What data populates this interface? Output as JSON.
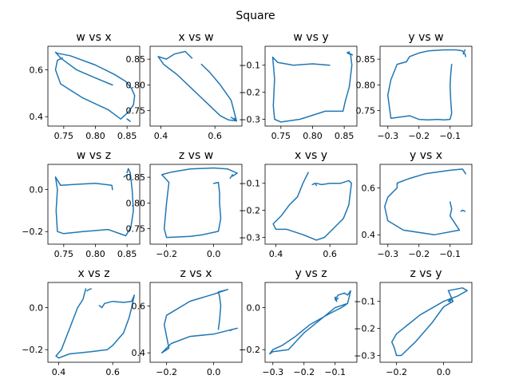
{
  "figure": {
    "suptitle": "Square"
  },
  "colors": {
    "line": "#1f77b4"
  },
  "chart_data": [
    {
      "type": "line",
      "title": "w vs x",
      "xlabel": "",
      "ylabel": "",
      "grid": false,
      "xlim": [
        0.725,
        0.87
      ],
      "ylim": [
        0.36,
        0.7
      ],
      "xticks": [
        {
          "v": 0.75,
          "label": "0.75"
        },
        {
          "v": 0.8,
          "label": "0.80"
        },
        {
          "v": 0.85,
          "label": "0.85"
        }
      ],
      "yticks": [
        {
          "v": 0.4,
          "label": "0.4"
        },
        {
          "v": 0.6,
          "label": "0.6"
        }
      ],
      "segments": [
        {
          "x": [
            0.827,
            0.8,
            0.77,
            0.745,
            0.737,
            0.74,
            0.76,
            0.8,
            0.83,
            0.848,
            0.857
          ],
          "y": [
            0.535,
            0.565,
            0.6,
            0.65,
            0.675,
            0.67,
            0.66,
            0.62,
            0.58,
            0.55,
            0.52
          ]
        },
        {
          "x": [
            0.857,
            0.862,
            0.86,
            0.852,
            0.84,
            0.82,
            0.78,
            0.745,
            0.737,
            0.74,
            0.748
          ],
          "y": [
            0.52,
            0.49,
            0.45,
            0.42,
            0.39,
            0.43,
            0.48,
            0.54,
            0.6,
            0.64,
            0.65
          ]
        },
        {
          "x": [
            0.855,
            0.85,
            0.853
          ],
          "y": [
            0.38,
            0.39,
            0.385
          ]
        }
      ]
    },
    {
      "type": "line",
      "title": "x vs w",
      "xlabel": "",
      "ylabel": "",
      "grid": false,
      "xlim": [
        0.36,
        0.7
      ],
      "ylim": [
        0.72,
        0.875
      ],
      "xticks": [
        {
          "v": 0.4,
          "label": "0.4"
        },
        {
          "v": 0.6,
          "label": "0.6"
        }
      ],
      "yticks": [
        {
          "v": 0.75,
          "label": "0.75"
        },
        {
          "v": 0.8,
          "label": "0.80"
        },
        {
          "v": 0.85,
          "label": "0.85"
        }
      ],
      "segments": [
        {
          "x": [
            0.515,
            0.49,
            0.45,
            0.42,
            0.39,
            0.41,
            0.46,
            0.52,
            0.58,
            0.62,
            0.65,
            0.68
          ],
          "y": [
            0.852,
            0.865,
            0.86,
            0.85,
            0.855,
            0.84,
            0.82,
            0.79,
            0.76,
            0.74,
            0.732,
            0.73
          ]
        },
        {
          "x": [
            0.68,
            0.66,
            0.62,
            0.58,
            0.55
          ],
          "y": [
            0.73,
            0.77,
            0.8,
            0.825,
            0.84
          ]
        },
        {
          "x": [
            0.66,
            0.68,
            0.672
          ],
          "y": [
            0.737,
            0.73,
            0.735
          ]
        }
      ]
    },
    {
      "type": "line",
      "title": "w vs y",
      "xlabel": "",
      "ylabel": "",
      "grid": false,
      "xlim": [
        0.725,
        0.87
      ],
      "ylim": [
        -0.325,
        -0.03
      ],
      "xticks": [
        {
          "v": 0.75,
          "label": "0.75"
        },
        {
          "v": 0.8,
          "label": "0.80"
        },
        {
          "v": 0.85,
          "label": "0.85"
        }
      ],
      "yticks": [
        {
          "v": -0.3,
          "label": "−0.3"
        },
        {
          "v": -0.2,
          "label": "−0.2"
        },
        {
          "v": -0.1,
          "label": "−0.1"
        }
      ],
      "segments": [
        {
          "x": [
            0.827,
            0.8,
            0.77,
            0.745,
            0.737,
            0.74,
            0.738,
            0.74,
            0.75,
            0.78,
            0.82,
            0.848,
            0.852,
            0.858,
            0.862,
            0.86,
            0.855,
            0.858
          ],
          "y": [
            -0.1,
            -0.095,
            -0.1,
            -0.09,
            -0.07,
            -0.15,
            -0.25,
            -0.3,
            -0.31,
            -0.3,
            -0.27,
            -0.27,
            -0.23,
            -0.18,
            -0.1,
            -0.06,
            -0.055,
            -0.05
          ]
        },
        {
          "x": [
            0.855,
            0.86,
            0.863
          ],
          "y": [
            -0.052,
            -0.058,
            -0.062
          ]
        }
      ]
    },
    {
      "type": "line",
      "title": "y vs w",
      "xlabel": "",
      "ylabel": "",
      "grid": false,
      "xlim": [
        -0.325,
        -0.03
      ],
      "ylim": [
        0.72,
        0.875
      ],
      "xticks": [
        {
          "v": -0.3,
          "label": "−0.3"
        },
        {
          "v": -0.2,
          "label": "−0.2"
        },
        {
          "v": -0.1,
          "label": "−0.1"
        }
      ],
      "yticks": [
        {
          "v": 0.75,
          "label": "0.75"
        },
        {
          "v": 0.8,
          "label": "0.80"
        },
        {
          "v": 0.85,
          "label": "0.85"
        }
      ],
      "segments": [
        {
          "x": [
            -0.095,
            -0.098,
            -0.1,
            -0.098,
            -0.095,
            -0.1,
            -0.12,
            -0.14,
            -0.17,
            -0.2,
            -0.23,
            -0.29,
            -0.3,
            -0.29,
            -0.27,
            -0.24,
            -0.23,
            -0.2,
            -0.17,
            -0.12,
            -0.08,
            -0.06,
            -0.052,
            -0.05
          ],
          "y": [
            0.84,
            0.82,
            0.8,
            0.77,
            0.745,
            0.733,
            0.732,
            0.733,
            0.732,
            0.733,
            0.74,
            0.735,
            0.78,
            0.81,
            0.84,
            0.845,
            0.855,
            0.862,
            0.866,
            0.868,
            0.868,
            0.866,
            0.86,
            0.855
          ]
        },
        {
          "x": [
            -0.052,
            -0.058
          ],
          "y": [
            0.868,
            0.86
          ]
        }
      ]
    },
    {
      "type": "line",
      "title": "w vs z",
      "xlabel": "",
      "ylabel": "",
      "grid": false,
      "xlim": [
        0.725,
        0.87
      ],
      "ylim": [
        -0.26,
        0.12
      ],
      "xticks": [
        {
          "v": 0.75,
          "label": "0.75"
        },
        {
          "v": 0.8,
          "label": "0.80"
        },
        {
          "v": 0.85,
          "label": "0.85"
        }
      ],
      "yticks": [
        {
          "v": -0.2,
          "label": "−0.2"
        },
        {
          "v": 0.0,
          "label": "0.0"
        }
      ],
      "segments": [
        {
          "x": [
            0.827,
            0.826,
            0.8,
            0.77,
            0.745,
            0.737,
            0.74,
            0.738,
            0.74,
            0.75,
            0.78,
            0.82,
            0.848,
            0.856,
            0.86,
            0.858,
            0.855,
            0.852,
            0.85
          ],
          "y": [
            0.0,
            0.02,
            0.03,
            0.025,
            0.02,
            0.06,
            0.0,
            -0.1,
            -0.2,
            -0.21,
            -0.2,
            -0.19,
            -0.22,
            -0.18,
            -0.1,
            0.0,
            0.08,
            0.1,
            0.08
          ]
        },
        {
          "x": [
            0.845,
            0.85
          ],
          "y": [
            0.06,
            0.07
          ]
        }
      ]
    },
    {
      "type": "line",
      "title": "z vs w",
      "xlabel": "",
      "ylabel": "",
      "grid": false,
      "xlim": [
        -0.27,
        0.12
      ],
      "ylim": [
        0.72,
        0.875
      ],
      "xticks": [
        {
          "v": -0.2,
          "label": "−0.2"
        },
        {
          "v": 0.0,
          "label": "0.0"
        }
      ],
      "yticks": [
        {
          "v": 0.75,
          "label": "0.75"
        },
        {
          "v": 0.8,
          "label": "0.80"
        },
        {
          "v": 0.85,
          "label": "0.85"
        }
      ],
      "segments": [
        {
          "x": [
            0.0,
            0.02,
            0.025,
            0.025,
            0.03,
            0.02,
            -0.05,
            -0.1,
            -0.2,
            -0.21,
            -0.2,
            -0.19,
            -0.22,
            -0.18,
            -0.1,
            0.0,
            0.06,
            0.08,
            0.1,
            0.08
          ],
          "y": [
            0.838,
            0.84,
            0.82,
            0.8,
            0.77,
            0.745,
            0.738,
            0.735,
            0.733,
            0.75,
            0.8,
            0.84,
            0.855,
            0.86,
            0.866,
            0.868,
            0.866,
            0.862,
            0.858,
            0.852
          ]
        },
        {
          "x": [
            0.07,
            0.08
          ],
          "y": [
            0.848,
            0.855
          ]
        }
      ]
    },
    {
      "type": "line",
      "title": "x vs y",
      "xlabel": "",
      "ylabel": "",
      "grid": false,
      "xlim": [
        0.36,
        0.7
      ],
      "ylim": [
        -0.325,
        -0.03
      ],
      "xticks": [
        {
          "v": 0.4,
          "label": "0.4"
        },
        {
          "v": 0.6,
          "label": "0.6"
        }
      ],
      "yticks": [
        {
          "v": -0.3,
          "label": "−0.3"
        },
        {
          "v": -0.2,
          "label": "−0.2"
        },
        {
          "v": -0.1,
          "label": "−0.1"
        }
      ],
      "segments": [
        {
          "x": [
            0.52,
            0.5,
            0.48,
            0.45,
            0.42,
            0.39,
            0.4,
            0.44,
            0.5,
            0.55,
            0.58,
            0.62,
            0.65,
            0.67,
            0.68,
            0.67,
            0.64,
            0.6,
            0.57,
            0.55
          ],
          "y": [
            -0.06,
            -0.1,
            -0.15,
            -0.18,
            -0.22,
            -0.25,
            -0.27,
            -0.27,
            -0.29,
            -0.31,
            -0.3,
            -0.26,
            -0.23,
            -0.18,
            -0.1,
            -0.09,
            -0.1,
            -0.1,
            -0.105,
            -0.1
          ]
        },
        {
          "x": [
            0.535,
            0.545,
            0.55
          ],
          "y": [
            -0.105,
            -0.1,
            -0.108
          ]
        }
      ]
    },
    {
      "type": "line",
      "title": "y vs x",
      "xlabel": "",
      "ylabel": "",
      "grid": false,
      "xlim": [
        -0.325,
        -0.03
      ],
      "ylim": [
        0.36,
        0.7
      ],
      "xticks": [
        {
          "v": -0.3,
          "label": "−0.3"
        },
        {
          "v": -0.2,
          "label": "−0.2"
        },
        {
          "v": -0.1,
          "label": "−0.1"
        }
      ],
      "yticks": [
        {
          "v": 0.4,
          "label": "0.4"
        },
        {
          "v": 0.6,
          "label": "0.6"
        }
      ],
      "segments": [
        {
          "x": [
            -0.1,
            -0.095,
            -0.1,
            -0.09,
            -0.07,
            -0.15,
            -0.25,
            -0.3,
            -0.31,
            -0.3,
            -0.27,
            -0.27,
            -0.23,
            -0.18,
            -0.1,
            -0.06,
            -0.055,
            -0.05
          ],
          "y": [
            0.54,
            0.51,
            0.48,
            0.46,
            0.42,
            0.4,
            0.42,
            0.46,
            0.52,
            0.56,
            0.6,
            0.62,
            0.64,
            0.66,
            0.675,
            0.68,
            0.67,
            0.66
          ]
        },
        {
          "x": [
            -0.052,
            -0.06,
            -0.065
          ],
          "y": [
            0.5,
            0.505,
            0.5
          ]
        }
      ]
    },
    {
      "type": "line",
      "title": "x vs z",
      "xlabel": "",
      "ylabel": "",
      "grid": false,
      "xlim": [
        0.36,
        0.7
      ],
      "ylim": [
        -0.26,
        0.12
      ],
      "xticks": [
        {
          "v": 0.4,
          "label": "0.4"
        },
        {
          "v": 0.6,
          "label": "0.6"
        }
      ],
      "yticks": [
        {
          "v": -0.2,
          "label": "−0.2"
        },
        {
          "v": 0.0,
          "label": "0.0"
        }
      ],
      "segments": [
        {
          "x": [
            0.5,
            0.49,
            0.47,
            0.44,
            0.41,
            0.39,
            0.4,
            0.44,
            0.52,
            0.58,
            0.6,
            0.64,
            0.66,
            0.67,
            0.68,
            0.67,
            0.64,
            0.6,
            0.57,
            0.56,
            0.55
          ],
          "y": [
            0.09,
            0.04,
            0.0,
            -0.1,
            -0.2,
            -0.23,
            -0.24,
            -0.22,
            -0.21,
            -0.2,
            -0.18,
            -0.12,
            -0.05,
            0.0,
            0.06,
            0.03,
            0.025,
            0.03,
            0.02,
            0.0,
            0.01
          ]
        },
        {
          "x": [
            0.52,
            0.51,
            0.505
          ],
          "y": [
            0.09,
            0.085,
            0.08
          ]
        }
      ]
    },
    {
      "type": "line",
      "title": "z vs x",
      "xlabel": "",
      "ylabel": "",
      "grid": false,
      "xlim": [
        -0.27,
        0.12
      ],
      "ylim": [
        0.36,
        0.7
      ],
      "xticks": [
        {
          "v": -0.2,
          "label": "−0.2"
        },
        {
          "v": 0.0,
          "label": "0.0"
        }
      ],
      "yticks": [
        {
          "v": 0.4,
          "label": "0.4"
        },
        {
          "v": 0.6,
          "label": "0.6"
        }
      ],
      "segments": [
        {
          "x": [
            0.02,
            0.025,
            0.03,
            0.025,
            0.02,
            0.06,
            0.0,
            -0.1,
            -0.2,
            -0.21,
            -0.2,
            -0.19,
            -0.22,
            -0.18,
            -0.1,
            0.0,
            0.08,
            0.1,
            0.08
          ],
          "y": [
            0.5,
            0.54,
            0.6,
            0.64,
            0.66,
            0.67,
            0.65,
            0.62,
            0.56,
            0.52,
            0.47,
            0.42,
            0.4,
            0.44,
            0.47,
            0.48,
            0.5,
            0.505,
            0.5
          ]
        },
        {
          "x": [
            0.07,
            0.08
          ],
          "y": [
            0.495,
            0.5
          ]
        }
      ]
    },
    {
      "type": "line",
      "title": "y vs z",
      "xlabel": "",
      "ylabel": "",
      "grid": false,
      "xlim": [
        -0.325,
        -0.03
      ],
      "ylim": [
        -0.26,
        0.12
      ],
      "xticks": [
        {
          "v": -0.3,
          "label": "−0.3"
        },
        {
          "v": -0.2,
          "label": "−0.2"
        },
        {
          "v": -0.1,
          "label": "−0.1"
        }
      ],
      "yticks": [
        {
          "v": -0.2,
          "label": "−0.2"
        },
        {
          "v": 0.0,
          "label": "0.0"
        }
      ],
      "segments": [
        {
          "x": [
            -0.1,
            -0.095,
            -0.1,
            -0.09,
            -0.07,
            -0.06,
            -0.05,
            -0.055,
            -0.06,
            -0.1,
            -0.15,
            -0.2,
            -0.25,
            -0.3,
            -0.31,
            -0.3,
            -0.27,
            -0.23,
            -0.18,
            -0.12,
            -0.08,
            -0.06
          ],
          "y": [
            0.05,
            0.03,
            0.04,
            0.06,
            0.07,
            0.06,
            0.08,
            0.05,
            0.02,
            0.0,
            -0.06,
            -0.12,
            -0.2,
            -0.21,
            -0.22,
            -0.2,
            -0.18,
            -0.14,
            -0.08,
            -0.03,
            0.0,
            0.02
          ]
        },
        {
          "x": [
            -0.1,
            -0.095,
            -0.09
          ],
          "y": [
            0.045,
            0.04,
            0.045
          ]
        }
      ]
    },
    {
      "type": "line",
      "title": "z vs y",
      "xlabel": "",
      "ylabel": "",
      "grid": false,
      "xlim": [
        -0.27,
        0.12
      ],
      "ylim": [
        -0.325,
        -0.03
      ],
      "xticks": [
        {
          "v": -0.2,
          "label": "−0.2"
        },
        {
          "v": 0.0,
          "label": "0.0"
        }
      ],
      "yticks": [
        {
          "v": -0.3,
          "label": "−0.3"
        },
        {
          "v": -0.2,
          "label": "−0.2"
        },
        {
          "v": -0.1,
          "label": "−0.1"
        }
      ],
      "segments": [
        {
          "x": [
            0.03,
            0.025,
            0.03,
            0.04,
            0.02,
            0.08,
            0.1,
            0.06,
            0.0,
            -0.1,
            -0.2,
            -0.22,
            -0.21,
            -0.2,
            -0.18,
            -0.12,
            -0.05,
            0.0,
            0.04
          ],
          "y": [
            -0.095,
            -0.1,
            -0.09,
            -0.1,
            -0.06,
            -0.05,
            -0.06,
            -0.08,
            -0.1,
            -0.15,
            -0.22,
            -0.25,
            -0.27,
            -0.3,
            -0.3,
            -0.25,
            -0.18,
            -0.12,
            -0.1
          ]
        },
        {
          "x": [
            0.02,
            0.025,
            0.03
          ],
          "y": [
            -0.1,
            -0.095,
            -0.105
          ]
        }
      ]
    }
  ]
}
